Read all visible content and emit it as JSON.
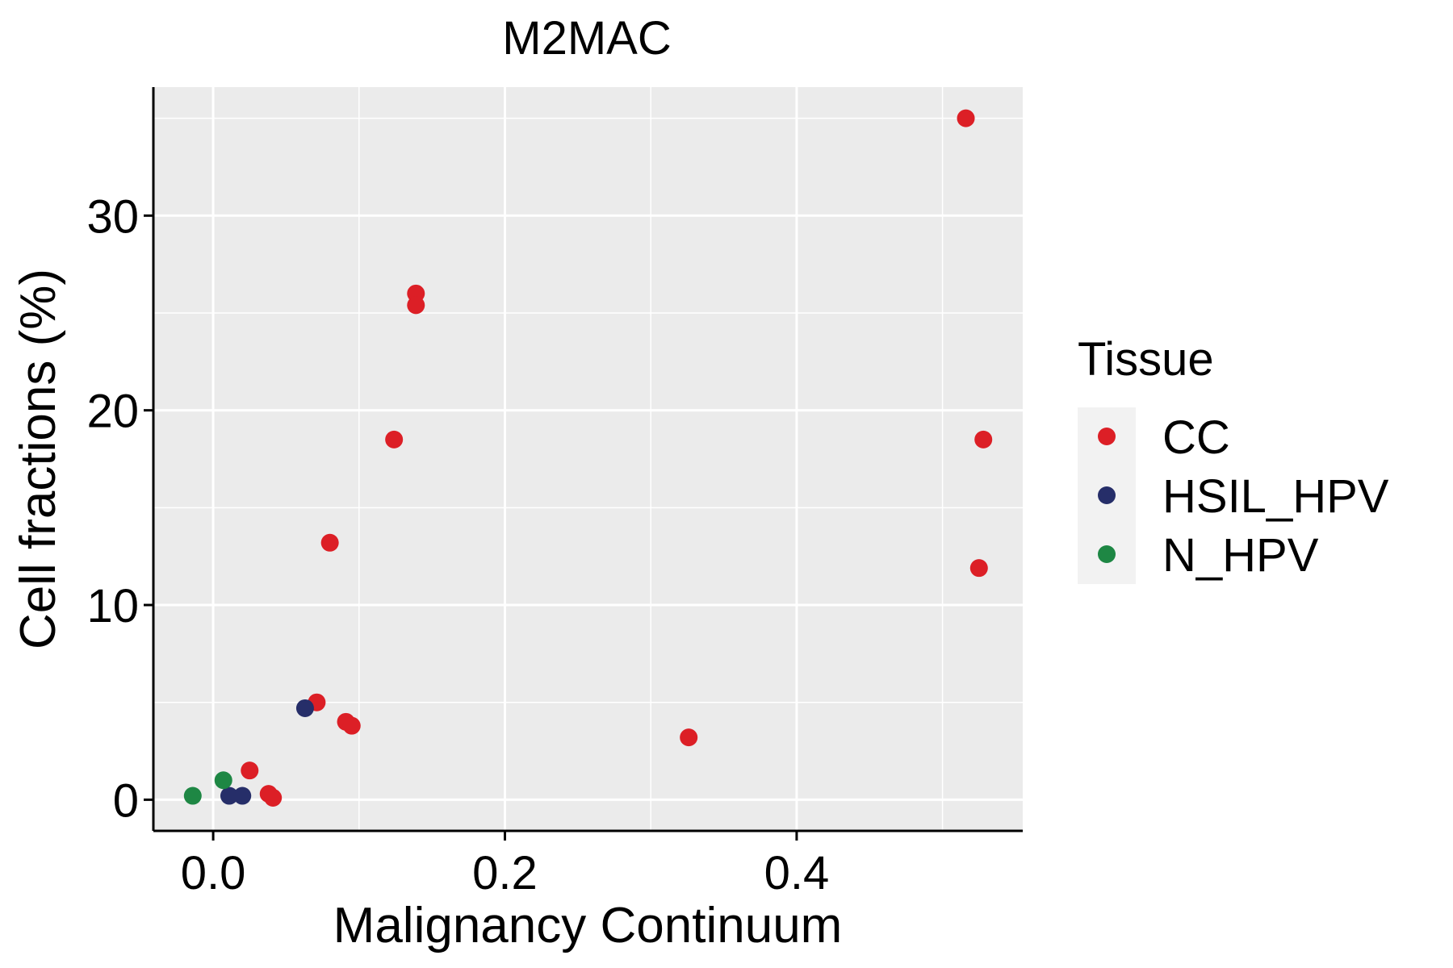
{
  "chart_data": {
    "type": "scatter",
    "title": "M2MAC",
    "xlabel": "Malignancy Continuum",
    "ylabel": "Cell fractions (%)",
    "xlim": [
      -0.041,
      0.555
    ],
    "ylim": [
      -1.6,
      36.6
    ],
    "xticks": [
      0.0,
      0.2,
      0.4
    ],
    "xtick_labels": [
      "0.0",
      "0.2",
      "0.4"
    ],
    "xminor": [
      0.1,
      0.3,
      0.5
    ],
    "yticks": [
      0,
      10,
      20,
      30
    ],
    "ytick_labels": [
      "0",
      "10",
      "20",
      "30"
    ],
    "yminor": [
      5,
      15,
      25,
      35
    ],
    "legend": {
      "title": "Tissue",
      "position": "right",
      "entries": [
        {
          "label": "CC",
          "color": "#DC1F26"
        },
        {
          "label": "HSIL_HPV",
          "color": "#262E69"
        },
        {
          "label": "N_HPV",
          "color": "#1E8744"
        }
      ]
    },
    "colors": {
      "panel_bg": "#EBEBEB",
      "grid": "#FFFFFF",
      "axis": "#000000"
    },
    "series": [
      {
        "name": "CC",
        "color": "#DC1F26",
        "points": [
          {
            "x": 0.025,
            "y": 1.5
          },
          {
            "x": 0.038,
            "y": 0.3
          },
          {
            "x": 0.041,
            "y": 0.1
          },
          {
            "x": 0.071,
            "y": 5.0
          },
          {
            "x": 0.08,
            "y": 13.2
          },
          {
            "x": 0.091,
            "y": 4.0
          },
          {
            "x": 0.095,
            "y": 3.8
          },
          {
            "x": 0.124,
            "y": 18.5
          },
          {
            "x": 0.139,
            "y": 26.0
          },
          {
            "x": 0.139,
            "y": 25.4
          },
          {
            "x": 0.326,
            "y": 3.2
          },
          {
            "x": 0.516,
            "y": 35.0
          },
          {
            "x": 0.525,
            "y": 11.9
          },
          {
            "x": 0.528,
            "y": 18.5
          }
        ]
      },
      {
        "name": "HSIL_HPV",
        "color": "#262E69",
        "points": [
          {
            "x": 0.011,
            "y": 0.2
          },
          {
            "x": 0.02,
            "y": 0.2
          },
          {
            "x": 0.063,
            "y": 4.7
          }
        ]
      },
      {
        "name": "N_HPV",
        "color": "#1E8744",
        "points": [
          {
            "x": -0.014,
            "y": 0.2
          },
          {
            "x": 0.007,
            "y": 1.0
          }
        ]
      }
    ]
  }
}
